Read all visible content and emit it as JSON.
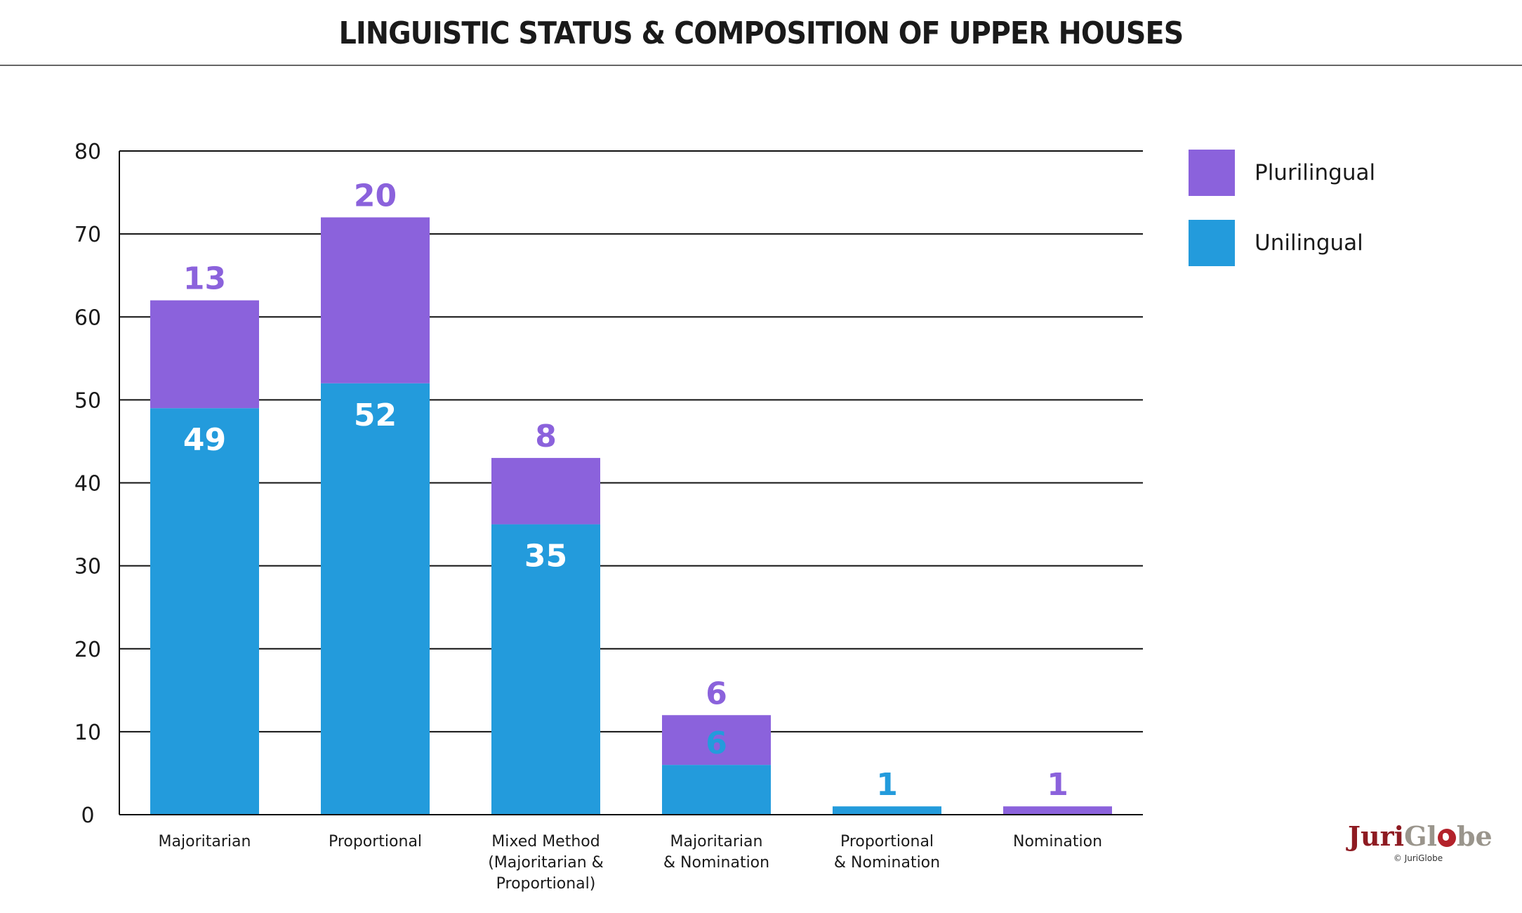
{
  "chart_data": {
    "type": "bar",
    "stacked": true,
    "title": "LINGUISTIC STATUS & COMPOSITION OF UPPER HOUSES",
    "categories": [
      [
        "Majoritarian"
      ],
      [
        "Proportional"
      ],
      [
        "Mixed Method",
        "(Majoritarian &",
        "Proportional)"
      ],
      [
        "Majoritarian",
        "& Nomination"
      ],
      [
        "Proportional",
        "& Nomination"
      ],
      [
        "Nomination"
      ]
    ],
    "series": [
      {
        "name": "Unilingual",
        "color": "#239bdc",
        "values": [
          49,
          52,
          35,
          6,
          1,
          0
        ]
      },
      {
        "name": "Plurilingual",
        "color": "#8b62dc",
        "values": [
          13,
          20,
          8,
          6,
          0,
          1
        ]
      }
    ],
    "data_labels": {
      "unilingual": [
        "49",
        "52",
        "35",
        "6",
        "1",
        ""
      ],
      "plurilingual": [
        "13",
        "20",
        "8",
        "6",
        "",
        "1"
      ]
    },
    "ylim": [
      0,
      80
    ],
    "yticks": [
      0,
      10,
      20,
      30,
      40,
      50,
      60,
      70,
      80
    ],
    "ytick_labels": [
      "0",
      "10",
      "20",
      "30",
      "40",
      "50",
      "60",
      "70",
      "80"
    ],
    "grid": true,
    "legend_position": "top-right",
    "legend": [
      {
        "label": "Plurilingual",
        "color": "#8b62dc"
      },
      {
        "label": "Unilingual",
        "color": "#239bdc"
      }
    ]
  },
  "branding": {
    "logo_part1": "Juri",
    "logo_part2": "Gl",
    "logo_part3": "be",
    "copyright": "© JuriGlobe"
  }
}
